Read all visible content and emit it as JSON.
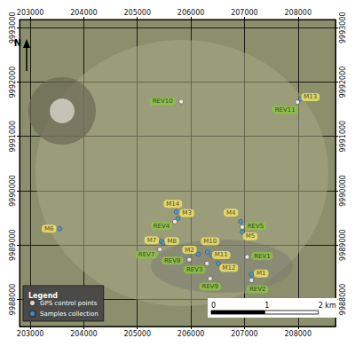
{
  "chart_data": {
    "type": "scatter",
    "xlim": [
      202800,
      208700
    ],
    "ylim": [
      9987500,
      9993150
    ],
    "xticks": [
      203000,
      204000,
      205000,
      206000,
      207000,
      208000
    ],
    "yticks": [
      9988000,
      9989000,
      9990000,
      9991000,
      9992000,
      9993000
    ],
    "grid": true,
    "legend": "lower left",
    "legend_title": "Legend",
    "north_label": "N",
    "scale_bar": {
      "unit": "km",
      "ticks": [
        {
          "value": 0,
          "label": "0"
        },
        {
          "value": 1,
          "label": "1"
        },
        {
          "value": 2,
          "label": "2 km"
        }
      ]
    },
    "series": [
      {
        "name": "GPS control points",
        "color": "#ffffff",
        "marker": "circle",
        "labels": [
          "REV10",
          "REV11",
          "REV4",
          "REV5",
          "REV7",
          "REV8",
          "REV1",
          "REV3",
          "REV9",
          "REV2"
        ],
        "x": [
          205820,
          207990,
          205700,
          206960,
          205420,
          205970,
          207050,
          206300,
          206360,
          207130
        ],
        "y": [
          9991640,
          9991630,
          9989430,
          9989330,
          9988920,
          9988730,
          9988780,
          9988660,
          9988380,
          9988350
        ]
      },
      {
        "name": "Samples collection",
        "color": "#3b9bd6",
        "marker": "circle",
        "labels": [
          "M13",
          "M14",
          "M3",
          "M4",
          "M5",
          "M6",
          "M7",
          "M8",
          "M2",
          "M10",
          "M11",
          "M12",
          "M1"
        ],
        "x": [
          208050,
          205730,
          205760,
          206930,
          206960,
          203550,
          205450,
          205480,
          206140,
          206310,
          206400,
          206510,
          207130
        ],
        "y": [
          9991690,
          9989610,
          9989490,
          9989430,
          9989240,
          9989300,
          9989070,
          9989040,
          9988830,
          9988870,
          9988800,
          9988660,
          9988460
        ]
      }
    ]
  }
}
